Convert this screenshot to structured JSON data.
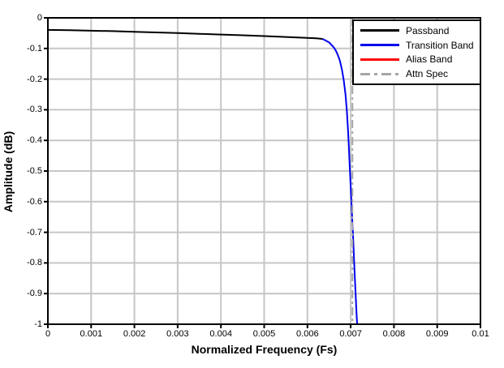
{
  "chart_data": {
    "type": "line",
    "title": "",
    "xlabel": "Normalized Frequency (Fs)",
    "ylabel": "Amplitude (dB)",
    "xlim": [
      0,
      0.01
    ],
    "ylim": [
      -1,
      0
    ],
    "grid": true,
    "legend_position": "top-right",
    "colors": {
      "background": "#FFFFFF",
      "grid": "#C6C6C6",
      "axis_border": "#000000",
      "tick_text": "#000000"
    },
    "xticks": {
      "values": [
        0,
        0.001,
        0.002,
        0.003,
        0.004,
        0.005,
        0.006,
        0.007,
        0.008,
        0.009,
        0.01
      ],
      "labels": [
        "0",
        "0.001",
        "0.002",
        "0.003",
        "0.004",
        "0.005",
        "0.006",
        "0.007",
        "0.008",
        "0.009",
        "0.01"
      ]
    },
    "yticks": {
      "values": [
        0,
        -0.1,
        -0.2,
        -0.3,
        -0.4,
        -0.5,
        -0.6,
        -0.7,
        -0.8,
        -0.9,
        -1
      ],
      "labels": [
        "0",
        "-0.1",
        "-0.2",
        "-0.3",
        "-0.4",
        "-0.5",
        "-0.6",
        "-0.7",
        "-0.8",
        "-0.9",
        "-1"
      ]
    },
    "series": [
      {
        "name": "Passband",
        "color": "#000000",
        "style": "solid",
        "points": [
          [
            0.0,
            -0.0395
          ],
          [
            0.0005,
            -0.0405
          ],
          [
            0.001,
            -0.042
          ],
          [
            0.0015,
            -0.0435
          ],
          [
            0.002,
            -0.0455
          ],
          [
            0.0025,
            -0.0475
          ],
          [
            0.003,
            -0.0495
          ],
          [
            0.0035,
            -0.052
          ],
          [
            0.004,
            -0.0545
          ],
          [
            0.0045,
            -0.057
          ],
          [
            0.005,
            -0.0595
          ],
          [
            0.0055,
            -0.0625
          ],
          [
            0.006,
            -0.0655
          ],
          [
            0.0062,
            -0.067
          ],
          [
            0.0063,
            -0.068
          ],
          [
            0.00635,
            -0.069
          ]
        ]
      },
      {
        "name": "Transition Band",
        "color": "#0000EE",
        "style": "solid",
        "points": [
          [
            0.00635,
            -0.069
          ],
          [
            0.0064,
            -0.0725
          ],
          [
            0.0065,
            -0.08
          ],
          [
            0.0066,
            -0.095
          ],
          [
            0.00665,
            -0.105
          ],
          [
            0.0067,
            -0.12
          ],
          [
            0.00675,
            -0.14
          ],
          [
            0.0068,
            -0.17
          ],
          [
            0.00684,
            -0.205
          ],
          [
            0.00688,
            -0.25
          ],
          [
            0.00691,
            -0.3
          ],
          [
            0.00694,
            -0.37
          ],
          [
            0.00696,
            -0.43
          ],
          [
            0.00698,
            -0.49
          ],
          [
            0.007,
            -0.55
          ],
          [
            0.00703,
            -0.64
          ],
          [
            0.00706,
            -0.73
          ],
          [
            0.00709,
            -0.83
          ],
          [
            0.00712,
            -0.92
          ],
          [
            0.00714,
            -0.98
          ],
          [
            0.00715,
            -1.0
          ]
        ]
      },
      {
        "name": "Alias Band",
        "color": "#FF0000",
        "style": "solid",
        "points": []
      },
      {
        "name": "Attn Spec",
        "color": "#A6A6A6",
        "style": "dash-dot",
        "vline_x": 0.00704
      }
    ]
  }
}
